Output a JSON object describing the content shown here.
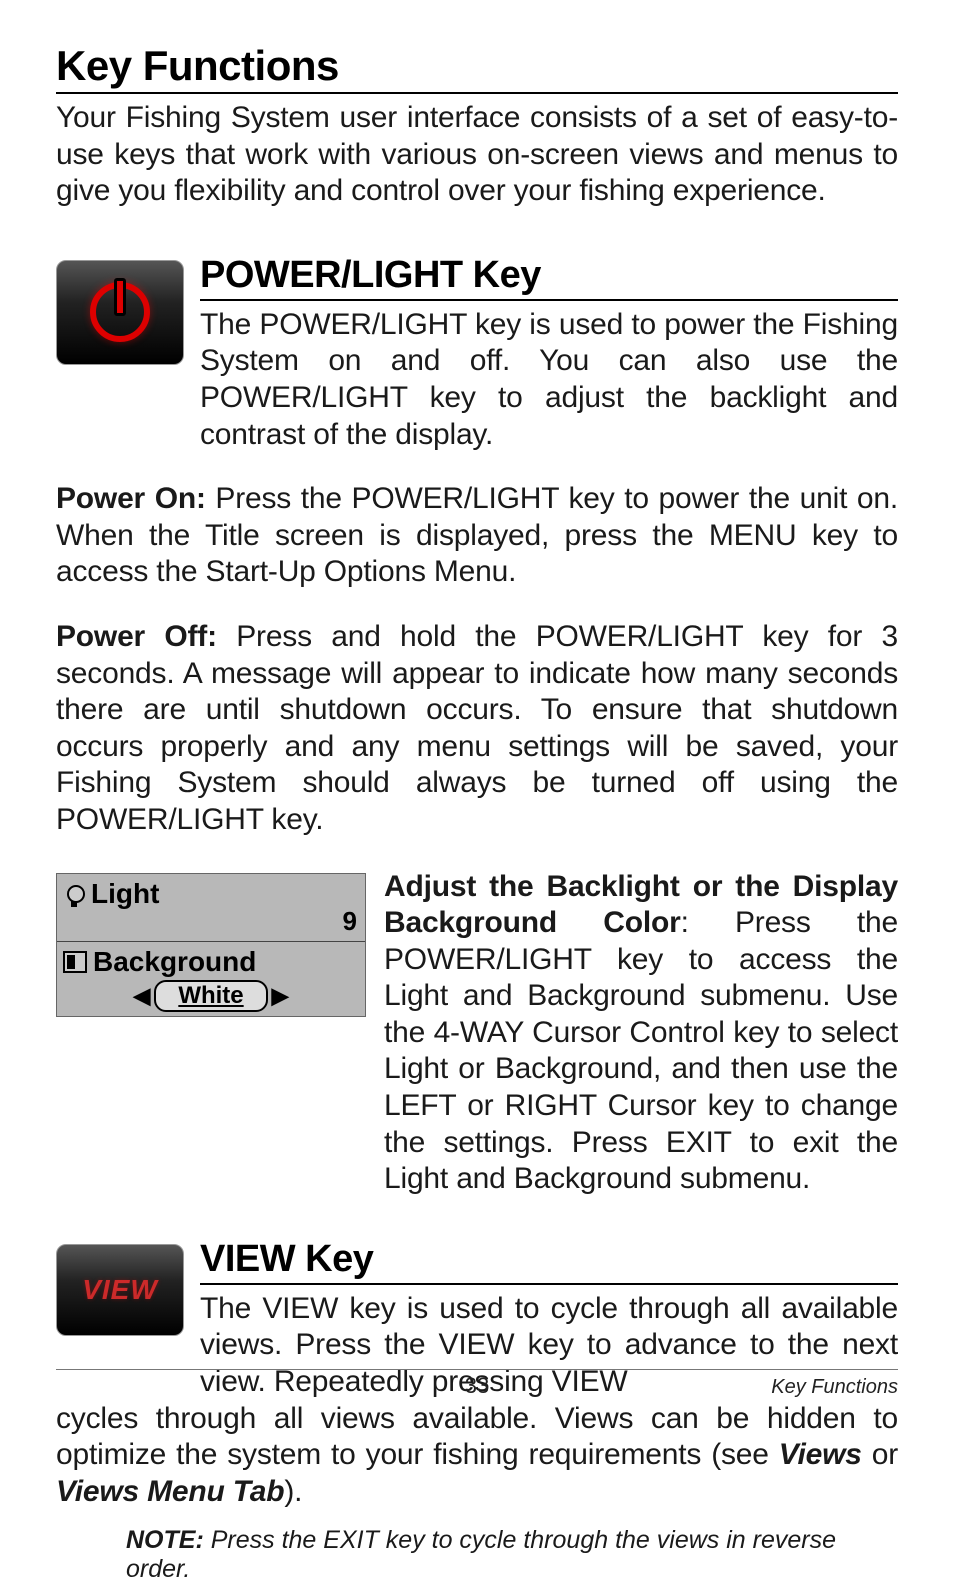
{
  "page": {
    "h1": "Key Functions",
    "intro": "Your Fishing System user interface consists of a set of easy-to-use keys that work with various on-screen views and menus to give you flexibility and control over your fishing experience."
  },
  "power_section": {
    "heading": "POWER/LIGHT Key",
    "p1": "The POWER/LIGHT key is used to power the Fishing System on and off. You can also use the POWER/LIGHT key to adjust the backlight and contrast of the display.",
    "power_on_label": "Power On:",
    "power_on_text": " Press the POWER/LIGHT key to power the unit on. When the Title screen is displayed, press the MENU key to access the Start-Up Options Menu.",
    "power_off_label": "Power Off:",
    "power_off_text": " Press and hold the POWER/LIGHT key for 3 seconds. A message will appear to indicate how many seconds there are until shutdown occurs. To ensure that shutdown occurs properly and any menu settings will be saved, your Fishing System should always be turned off using the POWER/LIGHT key."
  },
  "menu_box": {
    "light_label": "Light",
    "light_value": "9",
    "background_label": "Background",
    "background_value": "White"
  },
  "backlight": {
    "lead_bold": "Adjust the Backlight or the Display Background Color",
    "text": ": Press the POWER/LIGHT key to access the Light and Background submenu. Use the 4-WAY Cursor Control key to select Light or Background, and then use the LEFT or RIGHT Cursor key to change the settings. Press EXIT to exit the Light and Background submenu."
  },
  "view_section": {
    "button_text": "VIEW",
    "heading": "VIEW Key",
    "p1a": "The VIEW key is used to cycle through all available views. Press the VIEW key to advance to the next view. Repeatedly pressing VIEW ",
    "p1b": "cycles through all views available. Views can be hidden to optimize the system to your fishing requirements (see ",
    "views_ital": "Views",
    "or_text": " or ",
    "views_menu_ital": "Views Menu Tab",
    "p1c": ").",
    "note_label": "NOTE:",
    "note_text": " Press the EXIT key to cycle through the views in reverse order."
  },
  "footer": {
    "page_number": "33",
    "page_label": "Key Functions"
  },
  "colors": {
    "text": "#000000",
    "rule": "#000000",
    "key_bg_top": "#555555",
    "key_bg_bottom": "#000000",
    "accent_red": "#cc2a2a",
    "menu_bg": "#b8b8b8"
  },
  "typography": {
    "h1_size": 42,
    "h2_size": 38,
    "body_size": 30,
    "note_size": 25,
    "footer_size": 22
  }
}
